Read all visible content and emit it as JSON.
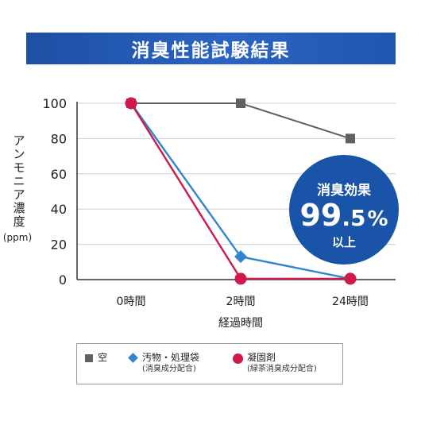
{
  "banner": {
    "title": "消臭性能試験結果"
  },
  "badge": {
    "line1": "消臭効果",
    "value": "99.5",
    "unit": "%",
    "line3": "以上"
  },
  "colors": {
    "banner": "#1d4fa3",
    "badge": "#1a54a8",
    "grid": "#d0d0d0",
    "axis": "#333333"
  },
  "chart_data": {
    "type": "line",
    "categories": [
      "0時間",
      "2時間",
      "24時間"
    ],
    "ylim": [
      0,
      100
    ],
    "yticks": [
      0,
      20,
      40,
      60,
      80,
      100
    ],
    "ylabel": "アンモニア濃度",
    "ylabel_unit": "(ppm)",
    "xlabel": "経過時間",
    "grid": true,
    "series": [
      {
        "name": "空",
        "values": [
          100,
          100,
          80
        ],
        "color": "#606060",
        "marker": "square"
      },
      {
        "name": "汚物・処理袋",
        "sub": "(消臭成分配合)",
        "values": [
          100,
          13,
          0.5
        ],
        "color": "#2f86cf",
        "marker": "diamond"
      },
      {
        "name": "凝固剤",
        "sub": "(緑茶消臭成分配合)",
        "values": [
          100,
          0.5,
          0.5
        ],
        "color": "#d0184a",
        "marker": "circle"
      }
    ]
  }
}
